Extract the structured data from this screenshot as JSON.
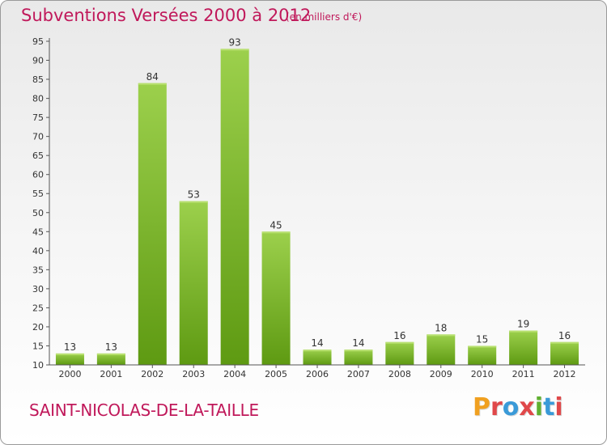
{
  "header": {
    "title": "Subventions Versées 2000 à 2012",
    "subtitle": "(en milliers d'€)"
  },
  "footer": {
    "commune": "SAINT-NICOLAS-DE-LA-TAILLE",
    "logo_letters": [
      "P",
      "r",
      "o",
      "x",
      "i",
      "t",
      "i"
    ],
    "logo_colors": [
      "#f0a020",
      "#e0484a",
      "#3a9ad8",
      "#e0484a",
      "#60b030",
      "#3a9ad8",
      "#e0484a"
    ]
  },
  "chart_data": {
    "type": "bar",
    "title": "Subventions Versées 2000 à 2012",
    "categories": [
      "2000",
      "2001",
      "2002",
      "2003",
      "2004",
      "2005",
      "2006",
      "2007",
      "2008",
      "2009",
      "2010",
      "2011",
      "2012"
    ],
    "values": [
      13,
      13,
      84,
      53,
      93,
      45,
      14,
      14,
      16,
      18,
      15,
      19,
      16
    ],
    "ylim": [
      10,
      95
    ],
    "yticks": [
      10,
      15,
      20,
      25,
      30,
      35,
      40,
      45,
      50,
      55,
      60,
      65,
      70,
      75,
      80,
      85,
      90,
      95
    ],
    "grid": false,
    "colors": {
      "bar_top": "#9cd04c",
      "bar_bottom": "#5e9a12",
      "axis": "#555555"
    }
  }
}
